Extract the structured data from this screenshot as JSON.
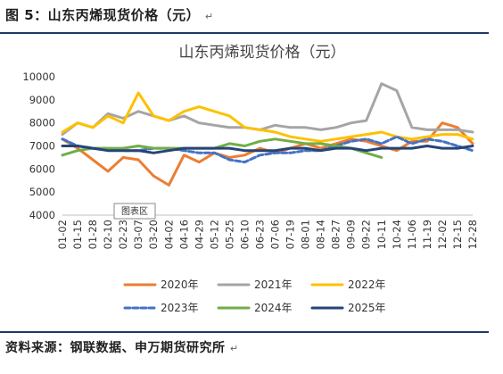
{
  "caption": "图 5：山东丙烯现货价格（元）",
  "source": "资料来源：钢联数据、申万期货研究所",
  "return_mark": "↵",
  "chart_data": {
    "type": "line",
    "title": "山东丙烯现货价格（元）",
    "xlabel": "",
    "ylabel": "",
    "ylim": [
      4000,
      10000
    ],
    "yticks": [
      4000,
      5000,
      6000,
      7000,
      8000,
      9000,
      10000
    ],
    "grid": false,
    "legend_position": "bottom",
    "annotation": "图表区",
    "categories": [
      "01-02",
      "01-15",
      "01-28",
      "02-10",
      "02-23",
      "03-07",
      "03-20",
      "04-02",
      "04-16",
      "04-29",
      "05-12",
      "05-25",
      "06-10",
      "06-23",
      "07-06",
      "07-19",
      "08-01",
      "08-14",
      "08-27",
      "09-09",
      "09-22",
      "10-11",
      "10-24",
      "11-06",
      "11-19",
      "12-02",
      "12-15",
      "12-28"
    ],
    "series": [
      {
        "name": "2020年",
        "color": "#ED7D31",
        "dash": "solid",
        "values": [
          7300,
          6900,
          6400,
          5900,
          6500,
          6400,
          5700,
          5300,
          6600,
          6300,
          6700,
          6500,
          6600,
          6900,
          6700,
          6900,
          7100,
          6900,
          7100,
          7300,
          7200,
          7000,
          6800,
          7200,
          7200,
          8000,
          7800,
          7100
        ]
      },
      {
        "name": "2021年",
        "color": "#A5A5A5",
        "dash": "solid",
        "values": [
          7500,
          8000,
          7800,
          8400,
          8200,
          8500,
          8300,
          8100,
          8300,
          8000,
          7900,
          7800,
          7800,
          7700,
          7900,
          7800,
          7800,
          7700,
          7800,
          8000,
          8100,
          9700,
          9400,
          7800,
          7700,
          7700,
          7700,
          7600
        ]
      },
      {
        "name": "2022年",
        "color": "#FFC000",
        "dash": "solid",
        "values": [
          7600,
          8000,
          7800,
          8300,
          8000,
          9300,
          8300,
          8100,
          8500,
          8700,
          8500,
          8300,
          7800,
          7700,
          7600,
          7400,
          7300,
          7200,
          7300,
          7400,
          7500,
          7600,
          7400,
          7300,
          7400,
          7500,
          7500,
          7300
        ]
      },
      {
        "name": "2023年",
        "color": "#4472C4",
        "dash": "dashed",
        "values": [
          7300,
          7000,
          6900,
          6900,
          6800,
          6800,
          6900,
          6900,
          6800,
          6700,
          6700,
          6400,
          6300,
          6600,
          6700,
          6700,
          6800,
          6800,
          7000,
          7200,
          7300,
          7100,
          7400,
          7100,
          7300,
          7200,
          7000,
          6800
        ]
      },
      {
        "name": "2024年",
        "color": "#70AD47",
        "dash": "solid",
        "values": [
          6600,
          6800,
          6900,
          6900,
          6900,
          7000,
          6900,
          6900,
          6900,
          6900,
          6900,
          7100,
          7000,
          7200,
          7300,
          7200,
          7100,
          7100,
          7000,
          6900,
          6700,
          6500,
          null,
          null,
          null,
          null,
          null,
          null
        ]
      },
      {
        "name": "2025年",
        "color": "#264478",
        "dash": "solid",
        "values": [
          7000,
          7000,
          6900,
          6800,
          6800,
          6800,
          6700,
          6800,
          6900,
          6900,
          6900,
          6900,
          6800,
          6800,
          6800,
          6900,
          6900,
          6800,
          6900,
          6900,
          6800,
          6900,
          6900,
          6900,
          7000,
          6900,
          6900,
          7000
        ]
      }
    ]
  }
}
